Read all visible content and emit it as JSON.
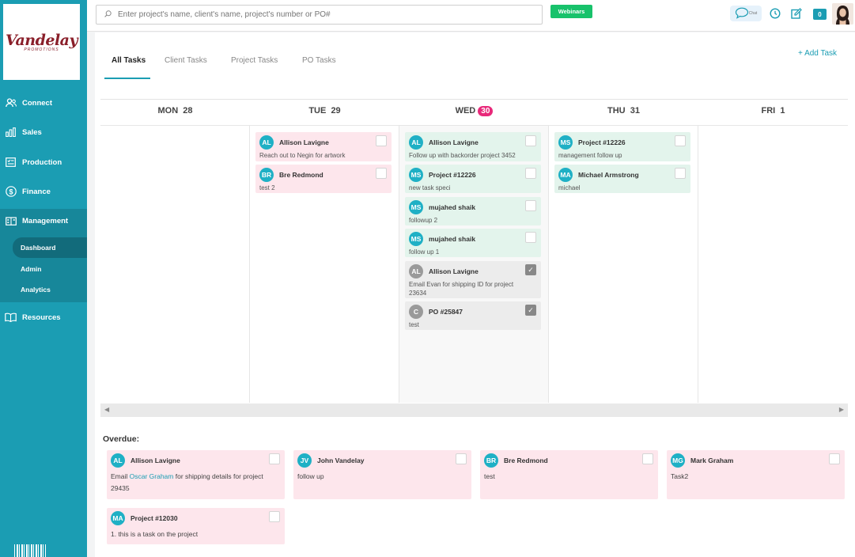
{
  "brand": {
    "logo_text": "Vandelay",
    "logo_sub": "PROMOTIONS"
  },
  "sidebar": {
    "items": [
      {
        "label": "Connect",
        "icon": "users-icon"
      },
      {
        "label": "Sales",
        "icon": "bar-chart-icon"
      },
      {
        "label": "Production",
        "icon": "checklist-icon"
      },
      {
        "label": "Finance",
        "icon": "dollar-icon"
      },
      {
        "label": "Management",
        "icon": "building-icon"
      },
      {
        "label": "Resources",
        "icon": "book-icon"
      }
    ],
    "sub_items": [
      {
        "label": "Dashboard",
        "active": true
      },
      {
        "label": "Admin"
      },
      {
        "label": "Analytics"
      }
    ]
  },
  "topbar": {
    "search_placeholder": "Enter project's name, client's name, project's number or PO#",
    "webinars": "Webinars",
    "chat": "Chat",
    "badge_count": "0"
  },
  "tabs": [
    {
      "label": "All Tasks",
      "active": true
    },
    {
      "label": "Client Tasks"
    },
    {
      "label": "Project Tasks"
    },
    {
      "label": "PO Tasks"
    }
  ],
  "add_task": "+ Add Task",
  "calendar": {
    "days": [
      {
        "dow": "MON",
        "num": "28"
      },
      {
        "dow": "TUE",
        "num": "29"
      },
      {
        "dow": "WED",
        "num": "30",
        "today": true
      },
      {
        "dow": "THU",
        "num": "31"
      },
      {
        "dow": "FRI",
        "num": "1"
      }
    ],
    "tue": [
      {
        "initials": "AL",
        "name": "Allison Lavigne",
        "desc": "Reach out to Negin for artwork"
      },
      {
        "initials": "BR",
        "name": "Bre Redmond",
        "desc": "test 2"
      }
    ],
    "wed": [
      {
        "initials": "AL",
        "name": "Allison Lavigne",
        "desc": "Follow up with backorder project 3452"
      },
      {
        "initials": "MS",
        "name": "Project #12226",
        "desc": "new task speci"
      },
      {
        "initials": "MS",
        "name": "mujahed shaik",
        "desc": "followup 2"
      },
      {
        "initials": "MS",
        "name": "mujahed shaik",
        "desc": "follow up 1"
      },
      {
        "initials": "AL",
        "name": "Allison Lavigne",
        "desc": "Email Evan for shipping ID for project 23634",
        "done": true
      },
      {
        "initials": "C",
        "name": "PO #25847",
        "desc": "test",
        "done": true
      }
    ],
    "thu": [
      {
        "initials": "MS",
        "name": "Project #12226",
        "desc": "management follow up"
      },
      {
        "initials": "MA",
        "name": "Michael Armstrong",
        "desc": "michael"
      }
    ]
  },
  "overdue": {
    "title": "Overdue:",
    "items": [
      {
        "initials": "AL",
        "name": "Allison Lavigne",
        "desc_pre": "Email ",
        "desc_link": "Oscar Graham",
        "desc_post": " for shipping details for project 29435"
      },
      {
        "initials": "JV",
        "name": "John Vandelay",
        "desc": "follow up"
      },
      {
        "initials": "BR",
        "name": "Bre Redmond",
        "desc": "test"
      },
      {
        "initials": "MG",
        "name": "Mark Graham",
        "desc": "Task2"
      },
      {
        "initials": "MA",
        "name": "Project #12030",
        "desc": "1. this is a task on the project"
      }
    ]
  },
  "colors": {
    "primary": "#1b9db3",
    "today": "#e8297a",
    "overdue_bg": "#fde6ec",
    "done_bg": "#ececec",
    "upcoming_bg": "#e3f4ec"
  }
}
